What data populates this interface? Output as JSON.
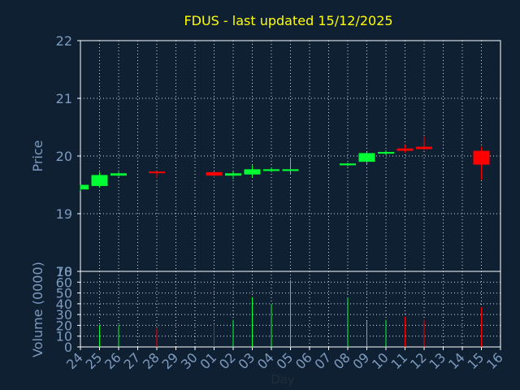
{
  "chart_data": [
    {
      "type": "candlestick",
      "title": "FDUS - last updated 15/12/2025",
      "xlabel": "Day",
      "ylabel": "Price",
      "ylim": [
        18,
        22
      ],
      "yticks": [
        18,
        19,
        20,
        21,
        22
      ],
      "categories": [
        "24",
        "25",
        "26",
        "27",
        "28",
        "29",
        "30",
        "01",
        "02",
        "03",
        "04",
        "05",
        "06",
        "07",
        "08",
        "09",
        "10",
        "11",
        "12",
        "13",
        "14",
        "15",
        "16"
      ],
      "colors": {
        "up": "#00ff33",
        "down": "#ff0000",
        "title": "#ffff00",
        "axis_text": "#7d9bbd",
        "background": "#102033",
        "grid": "#ffffff"
      },
      "grid": true,
      "candles": [
        {
          "x": "24",
          "open": 19.42,
          "high": 19.5,
          "low": 19.4,
          "close": 19.5
        },
        {
          "x": "25",
          "open": 19.48,
          "high": 19.72,
          "low": 19.45,
          "close": 19.67
        },
        {
          "x": "26",
          "open": 19.66,
          "high": 19.72,
          "low": 19.64,
          "close": 19.7
        },
        {
          "x": "28",
          "open": 19.73,
          "high": 19.74,
          "low": 19.62,
          "close": 19.72
        },
        {
          "x": "01",
          "open": 19.72,
          "high": 19.73,
          "low": 19.62,
          "close": 19.66
        },
        {
          "x": "02",
          "open": 19.66,
          "high": 19.73,
          "low": 19.6,
          "close": 19.7
        },
        {
          "x": "03",
          "open": 19.68,
          "high": 19.84,
          "low": 19.63,
          "close": 19.77
        },
        {
          "x": "04",
          "open": 19.74,
          "high": 19.8,
          "low": 19.72,
          "close": 19.77
        },
        {
          "x": "05",
          "open": 19.74,
          "high": 19.97,
          "low": 19.68,
          "close": 19.77
        },
        {
          "x": "08",
          "open": 19.84,
          "high": 19.88,
          "low": 19.82,
          "close": 19.87
        },
        {
          "x": "09",
          "open": 19.9,
          "high": 20.07,
          "low": 19.85,
          "close": 20.05
        },
        {
          "x": "10",
          "open": 20.04,
          "high": 20.1,
          "low": 20.02,
          "close": 20.07
        },
        {
          "x": "11",
          "open": 20.13,
          "high": 20.19,
          "low": 20.06,
          "close": 20.09
        },
        {
          "x": "12",
          "open": 20.16,
          "high": 20.34,
          "low": 20.1,
          "close": 20.12
        },
        {
          "x": "15",
          "open": 20.09,
          "high": 20.16,
          "low": 19.59,
          "close": 19.85
        }
      ]
    },
    {
      "type": "bar",
      "xlabel": "Day",
      "ylabel": "Volume (0000)",
      "ylim": [
        0,
        70
      ],
      "yticks": [
        0,
        10,
        20,
        30,
        40,
        50,
        60,
        70
      ],
      "grid": true,
      "categories": [
        "24",
        "25",
        "26",
        "27",
        "28",
        "29",
        "30",
        "01",
        "02",
        "03",
        "04",
        "05",
        "06",
        "07",
        "08",
        "09",
        "10",
        "11",
        "12",
        "13",
        "14",
        "15",
        "16"
      ],
      "values": [
        {
          "x": "25",
          "value": 20,
          "direction": "up"
        },
        {
          "x": "26",
          "value": 20,
          "direction": "up"
        },
        {
          "x": "28",
          "value": 17,
          "direction": "down"
        },
        {
          "x": "01",
          "value": 21,
          "direction": "down"
        },
        {
          "x": "02",
          "value": 25,
          "direction": "up"
        },
        {
          "x": "03",
          "value": 46,
          "direction": "up"
        },
        {
          "x": "04",
          "value": 40,
          "direction": "up"
        },
        {
          "x": "05",
          "value": 62,
          "direction": "up"
        },
        {
          "x": "08",
          "value": 46,
          "direction": "up"
        },
        {
          "x": "09",
          "value": 24,
          "direction": "up"
        },
        {
          "x": "10",
          "value": 25,
          "direction": "up"
        },
        {
          "x": "11",
          "value": 28,
          "direction": "down"
        },
        {
          "x": "12",
          "value": 25,
          "direction": "down"
        },
        {
          "x": "15",
          "value": 37,
          "direction": "down"
        }
      ]
    }
  ]
}
